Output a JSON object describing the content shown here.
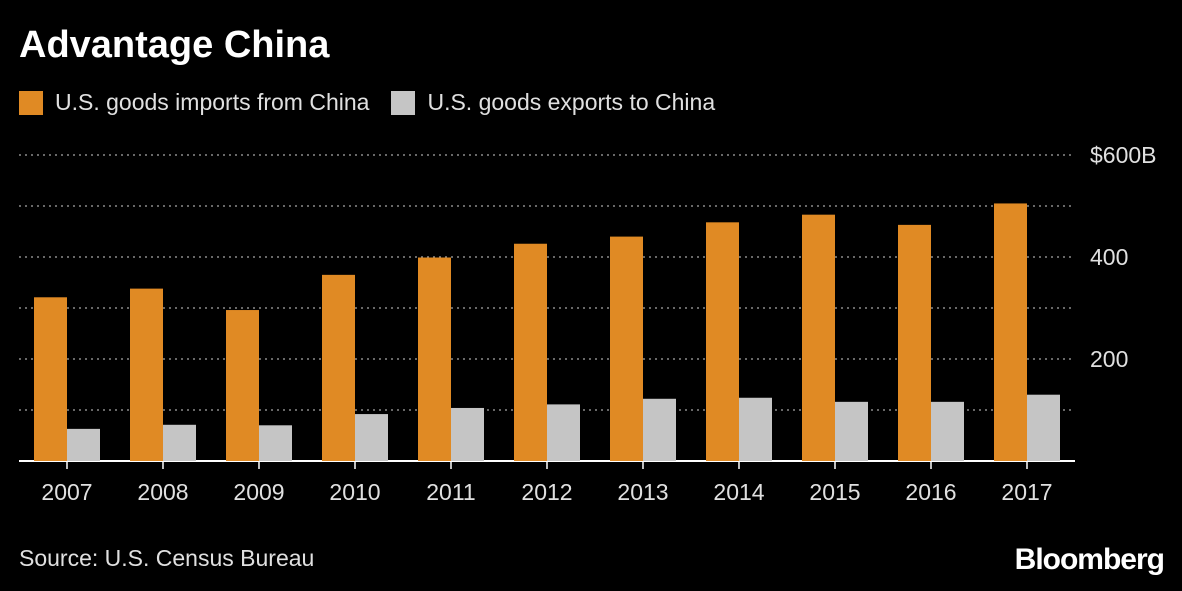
{
  "chart_data": {
    "type": "bar",
    "title": "Advantage China",
    "categories": [
      "2007",
      "2008",
      "2009",
      "2010",
      "2011",
      "2012",
      "2013",
      "2014",
      "2015",
      "2016",
      "2017"
    ],
    "series": [
      {
        "name": "U.S. goods imports from China",
        "color": "#e08a24",
        "values": [
          321,
          338,
          296,
          365,
          399,
          426,
          440,
          468,
          483,
          463,
          505
        ]
      },
      {
        "name": "U.S. goods exports to China",
        "color": "#c5c5c5",
        "values": [
          63,
          71,
          70,
          92,
          104,
          111,
          122,
          124,
          116,
          116,
          130
        ]
      }
    ],
    "ylim": [
      0,
      600
    ],
    "y_ticks": [
      {
        "value": 600,
        "label": "$600B"
      },
      {
        "value": 500,
        "label": ""
      },
      {
        "value": 400,
        "label": "400"
      },
      {
        "value": 300,
        "label": ""
      },
      {
        "value": 200,
        "label": "200"
      },
      {
        "value": 100,
        "label": ""
      }
    ],
    "grid": true,
    "legend_position": "top-left",
    "source": "Source: U.S. Census Bureau"
  },
  "brand": "Bloomberg",
  "colors": {
    "background": "#000000",
    "gridline": "#8a8a8a",
    "axis": "#ffffff",
    "text": "#e0e0e0"
  }
}
